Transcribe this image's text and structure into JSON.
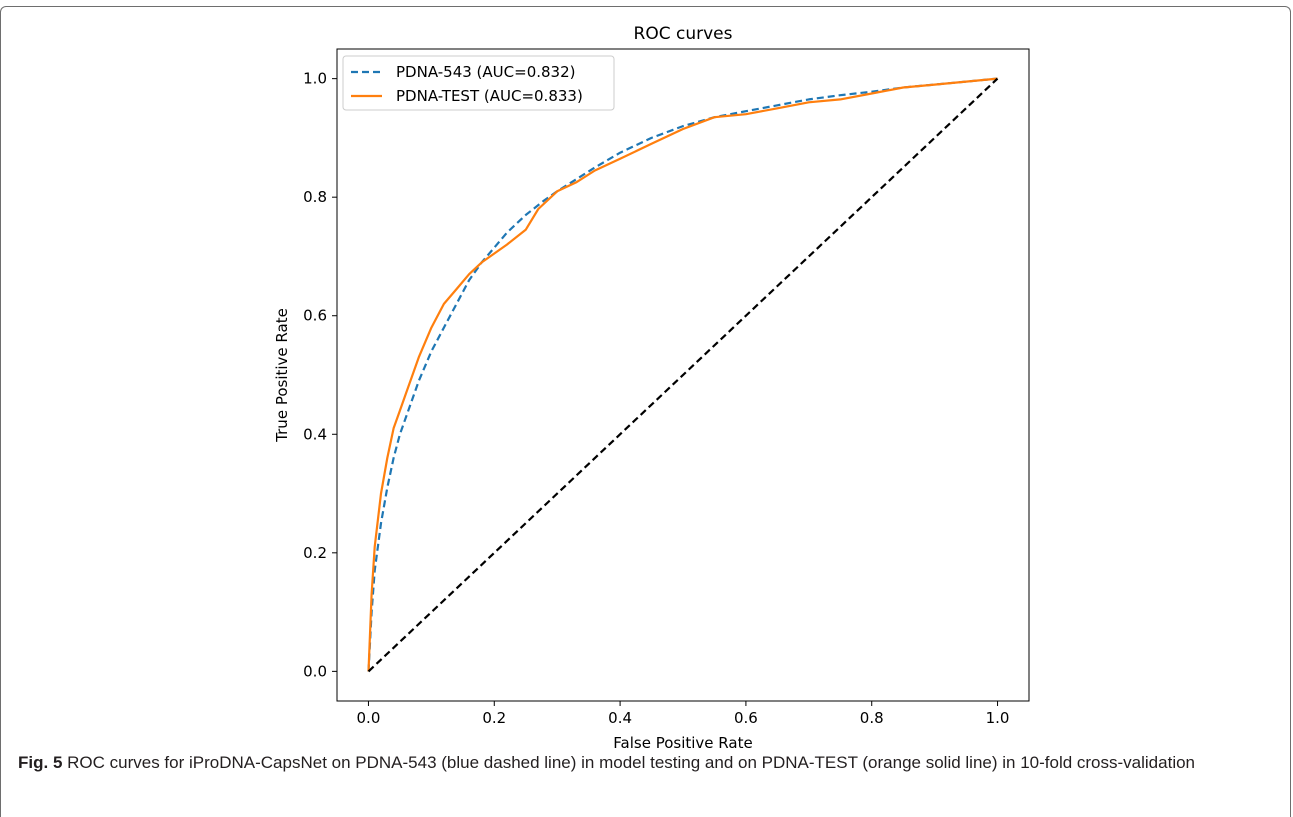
{
  "figure": {
    "label": "Fig. 5",
    "caption": "ROC curves for iProDNA-CapsNet on PDNA-543 (blue dashed line) in model testing and on PDNA-TEST (orange solid line) in 10-fold cross-validation"
  },
  "chart_data": {
    "type": "line",
    "title": "ROC curves",
    "xlabel": "False Positive Rate",
    "ylabel": "True Positive Rate",
    "xlim": [
      -0.05,
      1.05
    ],
    "ylim": [
      -0.05,
      1.05
    ],
    "xticks": [
      0.0,
      0.2,
      0.4,
      0.6,
      0.8,
      1.0
    ],
    "yticks": [
      0.0,
      0.2,
      0.4,
      0.6,
      0.8,
      1.0
    ],
    "xtick_labels": [
      "0.0",
      "0.2",
      "0.4",
      "0.6",
      "0.8",
      "1.0"
    ],
    "ytick_labels": [
      "0.0",
      "0.2",
      "0.4",
      "0.6",
      "0.8",
      "1.0"
    ],
    "grid": false,
    "legend_position": "top-left",
    "series": [
      {
        "name": "PDNA-543 (AUC=0.832)",
        "color": "#1f77b4",
        "style": "dashed",
        "x": [
          0.0,
          0.005,
          0.01,
          0.02,
          0.03,
          0.04,
          0.05,
          0.06,
          0.08,
          0.1,
          0.12,
          0.14,
          0.16,
          0.18,
          0.2,
          0.22,
          0.25,
          0.28,
          0.3,
          0.33,
          0.36,
          0.4,
          0.45,
          0.5,
          0.55,
          0.6,
          0.65,
          0.7,
          0.75,
          0.8,
          0.85,
          0.9,
          0.95,
          1.0
        ],
        "y": [
          0.0,
          0.1,
          0.17,
          0.25,
          0.31,
          0.36,
          0.4,
          0.43,
          0.49,
          0.54,
          0.58,
          0.62,
          0.66,
          0.69,
          0.715,
          0.74,
          0.77,
          0.795,
          0.81,
          0.83,
          0.85,
          0.875,
          0.9,
          0.92,
          0.935,
          0.945,
          0.955,
          0.965,
          0.972,
          0.978,
          0.985,
          0.99,
          0.995,
          1.0
        ]
      },
      {
        "name": "PDNA-TEST (AUC=0.833)",
        "color": "#ff7f0e",
        "style": "solid",
        "x": [
          0.0,
          0.005,
          0.01,
          0.02,
          0.03,
          0.04,
          0.05,
          0.06,
          0.08,
          0.1,
          0.12,
          0.14,
          0.16,
          0.18,
          0.2,
          0.22,
          0.25,
          0.27,
          0.3,
          0.33,
          0.36,
          0.4,
          0.45,
          0.5,
          0.55,
          0.6,
          0.65,
          0.7,
          0.75,
          0.8,
          0.85,
          0.9,
          0.95,
          1.0
        ],
        "y": [
          0.0,
          0.13,
          0.21,
          0.3,
          0.36,
          0.41,
          0.44,
          0.47,
          0.53,
          0.58,
          0.62,
          0.645,
          0.67,
          0.69,
          0.705,
          0.72,
          0.745,
          0.78,
          0.81,
          0.825,
          0.845,
          0.865,
          0.89,
          0.915,
          0.935,
          0.94,
          0.95,
          0.96,
          0.965,
          0.975,
          0.985,
          0.99,
          0.995,
          1.0
        ]
      },
      {
        "color": "#000000",
        "style": "dashed",
        "x": [
          0.0,
          1.0
        ],
        "y": [
          0.0,
          1.0
        ]
      }
    ]
  }
}
